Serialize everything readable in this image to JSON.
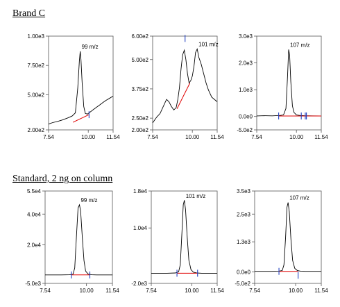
{
  "sections": [
    {
      "title": "Brand C"
    },
    {
      "title": "Standard, 2 ng on column"
    }
  ],
  "colors": {
    "trace": "#000000",
    "baseline": "#e00000",
    "marker": "#2040c0",
    "frame": "#555555"
  },
  "chart_data": [
    {
      "type": "line",
      "section": "Brand C",
      "annotation": "99 m/z",
      "xlim": [
        7.54,
        11.54
      ],
      "xticks": [
        "7.54",
        "10.00",
        "11.54"
      ],
      "ylim": [
        200,
        1000
      ],
      "yticks": [
        {
          "v": 1000,
          "label": "1.00e3"
        },
        {
          "v": 750,
          "label": "7.50e2"
        },
        {
          "v": 500,
          "label": "5.00e2"
        },
        {
          "v": 200,
          "label": "2.00e2"
        }
      ],
      "series": [
        {
          "x": [
            7.54,
            7.8,
            8.1,
            8.4,
            8.7,
            9.0,
            9.2,
            9.35,
            9.45,
            9.5,
            9.55,
            9.62,
            9.72,
            9.82,
            9.95,
            10.1,
            10.3,
            10.5,
            10.7,
            10.9,
            11.1,
            11.3,
            11.54
          ],
          "y": [
            250,
            262,
            272,
            285,
            300,
            318,
            345,
            560,
            790,
            870,
            800,
            600,
            400,
            340,
            335,
            350,
            372,
            392,
            412,
            432,
            452,
            468,
            488
          ]
        }
      ],
      "baseline": {
        "x": [
          9.05,
          10.05
        ],
        "y": [
          265,
          330
        ]
      },
      "markers": [
        {
          "x": 10.05,
          "y": 330
        }
      ]
    },
    {
      "type": "line",
      "section": "Brand C",
      "annotation": "101 m/z",
      "xlim": [
        7.54,
        11.54
      ],
      "xticks": [
        "7.54",
        "10.00",
        "11.54"
      ],
      "ylim": [
        200,
        600
      ],
      "yticks": [
        {
          "v": 600,
          "label": "6.00e2"
        },
        {
          "v": 500,
          "label": "5.00e2"
        },
        {
          "v": 375,
          "label": "3.75e2"
        },
        {
          "v": 250,
          "label": "2.50e2"
        },
        {
          "v": 200,
          "label": "2.00e2"
        }
      ],
      "series": [
        {
          "x": [
            7.54,
            7.8,
            8.0,
            8.2,
            8.4,
            8.55,
            8.7,
            8.85,
            9.0,
            9.1,
            9.2,
            9.3,
            9.4,
            9.5,
            9.6,
            9.7,
            9.8,
            9.9,
            10.0,
            10.1,
            10.2,
            10.3,
            10.4,
            10.55,
            10.7,
            10.85,
            11.0,
            11.2,
            11.54
          ],
          "y": [
            230,
            255,
            270,
            300,
            330,
            320,
            300,
            285,
            295,
            330,
            380,
            460,
            520,
            540,
            500,
            440,
            400,
            410,
            430,
            470,
            530,
            545,
            510,
            480,
            440,
            400,
            370,
            340,
            320
          ]
        }
      ],
      "baseline": {
        "x": [
          9.05,
          9.85
        ],
        "y": [
          290,
          400
        ]
      },
      "markers": [
        {
          "x": 9.55,
          "y": 590
        }
      ]
    },
    {
      "type": "line",
      "section": "Brand C",
      "annotation": "107 m/z",
      "xlim": [
        7.54,
        11.54
      ],
      "xticks": [
        "7.54",
        "10.00",
        "11.54"
      ],
      "ylim": [
        -500,
        3000
      ],
      "yticks": [
        {
          "v": 3000,
          "label": "3.0e3"
        },
        {
          "v": 2000,
          "label": "2.0e3"
        },
        {
          "v": 1000,
          "label": "1.0e3"
        },
        {
          "v": 0,
          "label": "0.0e0"
        },
        {
          "v": -500,
          "label": "-5.0e2"
        }
      ],
      "series": [
        {
          "x": [
            7.54,
            8.0,
            8.5,
            9.0,
            9.2,
            9.35,
            9.45,
            9.52,
            9.58,
            9.65,
            9.75,
            9.85,
            10.0,
            10.2,
            10.5,
            11.0,
            11.54
          ],
          "y": [
            20,
            30,
            25,
            40,
            60,
            300,
            1500,
            2500,
            2300,
            1300,
            400,
            150,
            60,
            40,
            30,
            25,
            20
          ]
        }
      ],
      "baseline": {
        "x": [
          8.9,
          11.54
        ],
        "y": [
          20,
          20
        ]
      },
      "markers": [
        {
          "x": 8.9,
          "y": 20
        },
        {
          "x": 10.3,
          "y": 20
        },
        {
          "x": 10.55,
          "y": 20
        },
        {
          "x": 10.62,
          "y": 20
        }
      ]
    },
    {
      "type": "line",
      "section": "Standard, 2 ng on column",
      "annotation": "99 m/z",
      "xlim": [
        7.54,
        11.54
      ],
      "xticks": [
        "7.54",
        "10.00",
        "11.54"
      ],
      "ylim": [
        -5000,
        55000
      ],
      "yticks": [
        {
          "v": 55000,
          "label": "5.5e4"
        },
        {
          "v": 40000,
          "label": "4.0e4"
        },
        {
          "v": 20000,
          "label": "2.0e4"
        },
        {
          "v": -5000,
          "label": "-5.0e3"
        }
      ],
      "series": [
        {
          "x": [
            7.54,
            8.5,
            9.0,
            9.2,
            9.3,
            9.4,
            9.5,
            9.58,
            9.65,
            9.75,
            9.85,
            9.95,
            10.1,
            10.3,
            10.6,
            11.0,
            11.54
          ],
          "y": [
            500,
            500,
            600,
            1000,
            5000,
            25000,
            44000,
            46000,
            42000,
            25000,
            10000,
            3000,
            1000,
            600,
            500,
            500,
            500
          ]
        }
      ],
      "baseline": {
        "x": [
          9.1,
          10.2
        ],
        "y": [
          500,
          500
        ]
      },
      "markers": [
        {
          "x": 9.1,
          "y": 500
        },
        {
          "x": 10.2,
          "y": 500
        }
      ]
    },
    {
      "type": "line",
      "section": "Standard, 2 ng on column",
      "annotation": "101 m/z",
      "xlim": [
        7.54,
        11.54
      ],
      "xticks": [
        "7.54",
        "10.00",
        "11.54"
      ],
      "ylim": [
        -2000,
        18000
      ],
      "yticks": [
        {
          "v": 18000,
          "label": "1.8e4"
        },
        {
          "v": 10000,
          "label": "1.0e4"
        },
        {
          "v": -2000,
          "label": "-2.0e3"
        }
      ],
      "series": [
        {
          "x": [
            7.54,
            8.5,
            9.0,
            9.2,
            9.3,
            9.4,
            9.48,
            9.55,
            9.62,
            9.72,
            9.82,
            9.95,
            10.1,
            10.3,
            10.6,
            11.0,
            11.54
          ],
          "y": [
            200,
            200,
            250,
            500,
            2000,
            9000,
            15000,
            16000,
            14000,
            8000,
            3000,
            1000,
            400,
            250,
            200,
            200,
            200
          ]
        }
      ],
      "baseline": {
        "x": [
          9.1,
          10.35
        ],
        "y": [
          200,
          200
        ]
      },
      "markers": [
        {
          "x": 9.1,
          "y": 200
        },
        {
          "x": 10.35,
          "y": 200
        }
      ]
    },
    {
      "type": "line",
      "section": "Standard, 2 ng on column",
      "annotation": "107 m/z",
      "xlim": [
        7.54,
        11.54
      ],
      "xticks": [
        "7.54",
        "10.00",
        "11.54"
      ],
      "ylim": [
        -500,
        3500
      ],
      "yticks": [
        {
          "v": 3500,
          "label": "3.5e3"
        },
        {
          "v": 2500,
          "label": "2.5e3"
        },
        {
          "v": 1300,
          "label": "1.3e3"
        },
        {
          "v": 0,
          "label": "0.0e0"
        },
        {
          "v": -500,
          "label": "-5.0e2"
        }
      ],
      "series": [
        {
          "x": [
            7.54,
            8.5,
            9.0,
            9.2,
            9.3,
            9.4,
            9.48,
            9.55,
            9.62,
            9.72,
            9.82,
            9.95,
            10.1,
            10.3,
            10.6,
            11.0,
            11.54
          ],
          "y": [
            20,
            20,
            30,
            60,
            300,
            1500,
            2800,
            3000,
            2600,
            1400,
            500,
            150,
            60,
            30,
            20,
            20,
            20
          ]
        }
      ],
      "baseline": {
        "x": [
          9.0,
          10.15
        ],
        "y": [
          20,
          20
        ]
      },
      "markers": [
        {
          "x": 9.0,
          "y": 20
        },
        {
          "x": 10.15,
          "y": -150
        }
      ]
    }
  ]
}
